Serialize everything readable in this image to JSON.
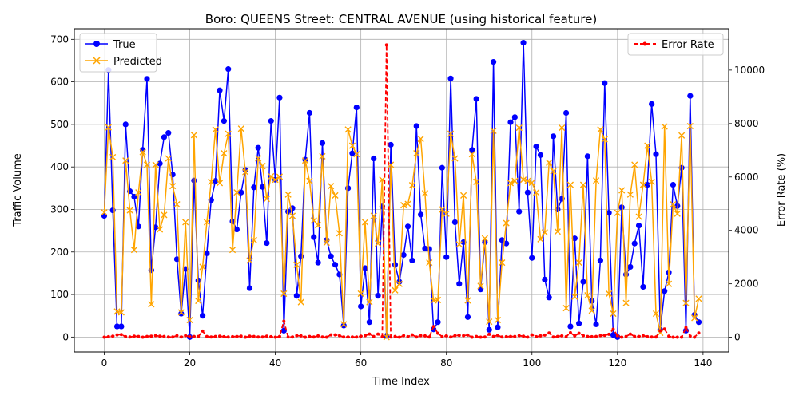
{
  "chart_data": {
    "type": "line",
    "title": "Boro: QUEENS Street: CENTRAL AVENUE (using historical feature)",
    "xlabel": "Time Index",
    "ylabel": "Traffic Volume",
    "y2label": "Error Rate (%)",
    "xlim": [
      -7,
      146
    ],
    "ylim": [
      -35,
      725
    ],
    "y2lim": [
      -550,
      11550
    ],
    "xticks": [
      0,
      20,
      40,
      60,
      80,
      100,
      120,
      140
    ],
    "yticks": [
      0,
      100,
      200,
      300,
      400,
      500,
      600,
      700
    ],
    "y2ticks": [
      0,
      2000,
      4000,
      6000,
      8000,
      10000
    ],
    "grid": true,
    "legend_left_placement": "upper-left",
    "legend_right_placement": "upper-right",
    "series": [
      {
        "name": "True",
        "color": "#0000ff",
        "marker": "circle",
        "axis": "left",
        "values": [
          285,
          628,
          298,
          25,
          25,
          500,
          343,
          330,
          260,
          440,
          607,
          157,
          258,
          408,
          470,
          480,
          382,
          183,
          55,
          160,
          0,
          368,
          133,
          50,
          197,
          322,
          367,
          580,
          508,
          630,
          272,
          253,
          340,
          393,
          115,
          352,
          445,
          353,
          221,
          508,
          370,
          563,
          15,
          295,
          303,
          97,
          190,
          417,
          527,
          235,
          175,
          456,
          228,
          190,
          170,
          147,
          27,
          350,
          432,
          540,
          72,
          162,
          35,
          420,
          97,
          307,
          3,
          452,
          170,
          130,
          193,
          260,
          180,
          496,
          288,
          208,
          207,
          18,
          35,
          398,
          188,
          608,
          270,
          125,
          223,
          47,
          440,
          560,
          112,
          223,
          17,
          647,
          23,
          228,
          220,
          505,
          517,
          295,
          692,
          340,
          186,
          448,
          428,
          135,
          93,
          472,
          300,
          325,
          527,
          25,
          232,
          32,
          130,
          425,
          85,
          30,
          180,
          597,
          292,
          5,
          0,
          305,
          147,
          165,
          220,
          262,
          118,
          358,
          548,
          430,
          17,
          108,
          152,
          358,
          308,
          398,
          15,
          567,
          52,
          35
        ]
      },
      {
        "name": "Predicted",
        "color": "#ffa500",
        "marker": "x",
        "axis": "left",
        "values": [
          293,
          493,
          423,
          60,
          58,
          415,
          298,
          205,
          340,
          435,
          405,
          77,
          405,
          253,
          287,
          420,
          355,
          312,
          58,
          270,
          40,
          475,
          85,
          165,
          270,
          365,
          488,
          362,
          432,
          478,
          205,
          340,
          490,
          388,
          180,
          228,
          420,
          402,
          325,
          378,
          370,
          377,
          102,
          335,
          285,
          170,
          82,
          415,
          367,
          274,
          263,
          425,
          222,
          355,
          333,
          244,
          30,
          488,
          450,
          430,
          102,
          270,
          82,
          285,
          220,
          370,
          0,
          405,
          110,
          125,
          310,
          313,
          357,
          432,
          466,
          338,
          175,
          86,
          87,
          300,
          290,
          478,
          420,
          218,
          333,
          86,
          430,
          365,
          120,
          232,
          36,
          485,
          40,
          175,
          268,
          362,
          367,
          492,
          370,
          367,
          363,
          340,
          230,
          246,
          410,
          390,
          248,
          492,
          68,
          358,
          95,
          175,
          358,
          98,
          62,
          368,
          488,
          465,
          102,
          55,
          292,
          345,
          80,
          335,
          405,
          283,
          358,
          450,
          365,
          55,
          10,
          495,
          125,
          312,
          290,
          474,
          80,
          496,
          45,
          90
        ]
      },
      {
        "name": "Error Rate",
        "color": "#ff0000",
        "marker": "dot",
        "axis": "right",
        "values": [
          3,
          20,
          40,
          90,
          100,
          20,
          10,
          40,
          30,
          1,
          30,
          40,
          60,
          40,
          30,
          10,
          10,
          60,
          10,
          60,
          20,
          30,
          30,
          230,
          30,
          10,
          30,
          40,
          20,
          10,
          20,
          30,
          40,
          1,
          40,
          30,
          10,
          10,
          40,
          20,
          1,
          30,
          600,
          10,
          10,
          60,
          50,
          1,
          30,
          10,
          50,
          10,
          1,
          90,
          90,
          60,
          10,
          10,
          10,
          10,
          40,
          60,
          120,
          30,
          120,
          20,
          10940,
          10,
          30,
          1,
          60,
          20,
          90,
          10,
          60,
          50,
          10,
          400,
          150,
          20,
          50,
          10,
          60,
          70,
          60,
          80,
          1,
          30,
          1,
          10,
          110,
          30,
          70,
          10,
          20,
          30,
          30,
          60,
          40,
          5,
          90,
          20,
          50,
          80,
          160,
          10,
          30,
          50,
          20,
          170,
          50,
          150,
          60,
          30,
          20,
          30,
          60,
          70,
          110,
          300,
          60,
          1,
          30,
          120,
          30,
          30,
          60,
          20,
          10,
          10,
          240,
          310,
          40,
          1,
          1,
          1,
          360,
          40,
          1,
          160
        ]
      }
    ]
  }
}
